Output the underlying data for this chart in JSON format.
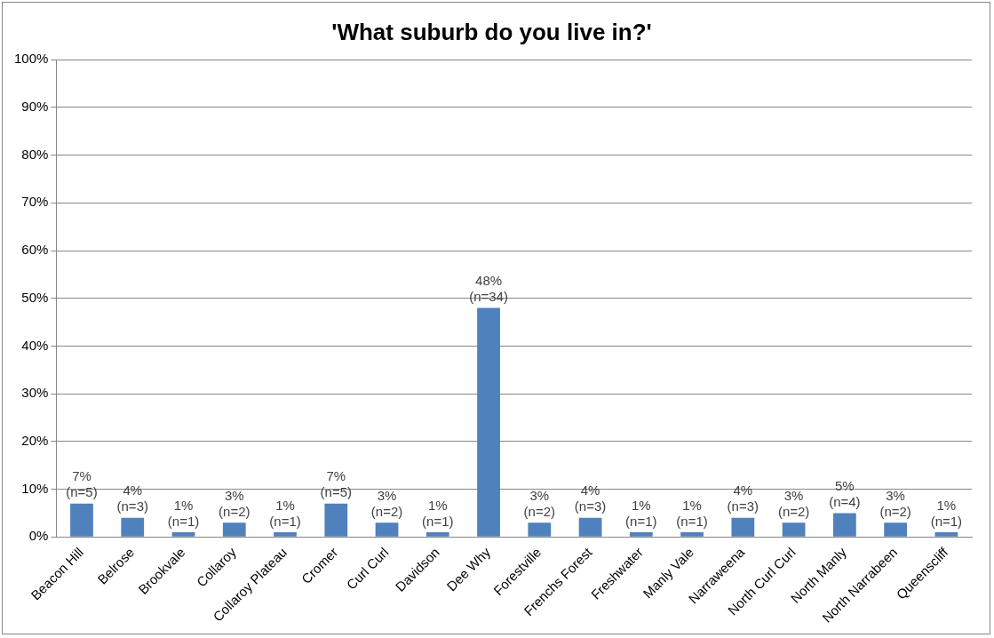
{
  "chart_data": {
    "type": "bar",
    "title": "'What suburb do you live in?'",
    "categories": [
      "Beacon Hill",
      "Belrose",
      "Brookvale",
      "Collaroy",
      "Collaroy Plateau",
      "Cromer",
      "Curl Curl",
      "Davidson",
      "Dee Why",
      "Forestville",
      "Frenchs Forest",
      "Freshwater",
      "Manly Vale",
      "Narraweena",
      "North Curl Curl",
      "North Manly",
      "North Narrabeen",
      "Queenscliff"
    ],
    "values": [
      7,
      4,
      1,
      3,
      1,
      7,
      3,
      1,
      48,
      3,
      4,
      1,
      1,
      4,
      3,
      5,
      3,
      1
    ],
    "value_labels": [
      "7%\n(n=5)",
      "4%\n(n=3)",
      "1%\n(n=1)",
      "3%\n(n=2)",
      "1%\n(n=1)",
      "7%\n(n=5)",
      "3%\n(n=2)",
      "1%\n(n=1)",
      "48%\n(n=34)",
      "3%\n(n=2)",
      "4%\n(n=3)",
      "1%\n(n=1)",
      "1%\n(n=1)",
      "4%\n(n=3)",
      "3%\n(n=2)",
      "5%\n(n=4)",
      "3%\n(n=2)",
      "1%\n(n=1)"
    ],
    "color": "#4f81bd",
    "ylim": [
      0,
      100
    ],
    "yticks": [
      {
        "value": 0,
        "label": "0%"
      },
      {
        "value": 10,
        "label": "10%"
      },
      {
        "value": 20,
        "label": "20%"
      },
      {
        "value": 30,
        "label": "30%"
      },
      {
        "value": 40,
        "label": "40%"
      },
      {
        "value": 50,
        "label": "50%"
      },
      {
        "value": 60,
        "label": "60%"
      },
      {
        "value": 70,
        "label": "70%"
      },
      {
        "value": 80,
        "label": "80%"
      },
      {
        "value": 90,
        "label": "90%"
      },
      {
        "value": 100,
        "label": "100%"
      }
    ],
    "grid": "y",
    "legend": false
  }
}
